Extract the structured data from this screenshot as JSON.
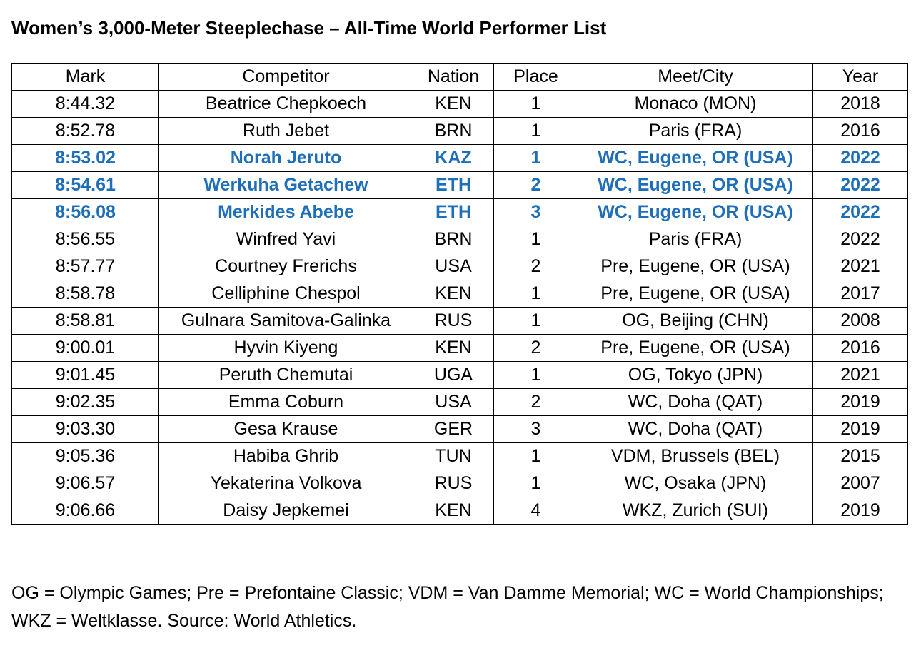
{
  "title": "Women’s 3,000-Meter Steeplechase – All-Time World Performer List",
  "colors": {
    "highlight": "#1f6fb8",
    "text": "#000000",
    "border": "#000000"
  },
  "table": {
    "headers": [
      "Mark",
      "Competitor",
      "Nation",
      "Place",
      "Meet/City",
      "Year"
    ],
    "rows": [
      {
        "mark": "8:44.32",
        "competitor": "Beatrice Chepkoech",
        "nation": "KEN",
        "place": "1",
        "meet": "Monaco (MON)",
        "year": "2018",
        "highlighted": false
      },
      {
        "mark": "8:52.78",
        "competitor": "Ruth Jebet",
        "nation": "BRN",
        "place": "1",
        "meet": "Paris (FRA)",
        "year": "2016",
        "highlighted": false
      },
      {
        "mark": "8:53.02",
        "competitor": "Norah Jeruto",
        "nation": "KAZ",
        "place": "1",
        "meet": "WC, Eugene, OR (USA)",
        "year": "2022",
        "highlighted": true
      },
      {
        "mark": "8:54.61",
        "competitor": "Werkuha Getachew",
        "nation": "ETH",
        "place": "2",
        "meet": "WC, Eugene, OR (USA)",
        "year": "2022",
        "highlighted": true
      },
      {
        "mark": "8:56.08",
        "competitor": "Merkides Abebe",
        "nation": "ETH",
        "place": "3",
        "meet": "WC, Eugene, OR (USA)",
        "year": "2022",
        "highlighted": true
      },
      {
        "mark": "8:56.55",
        "competitor": "Winfred Yavi",
        "nation": "BRN",
        "place": "1",
        "meet": "Paris (FRA)",
        "year": "2022",
        "highlighted": false
      },
      {
        "mark": "8:57.77",
        "competitor": "Courtney Frerichs",
        "nation": "USA",
        "place": "2",
        "meet": "Pre, Eugene, OR (USA)",
        "year": "2021",
        "highlighted": false
      },
      {
        "mark": "8:58.78",
        "competitor": "Celliphine Chespol",
        "nation": "KEN",
        "place": "1",
        "meet": "Pre, Eugene, OR (USA)",
        "year": "2017",
        "highlighted": false
      },
      {
        "mark": "8:58.81",
        "competitor": "Gulnara Samitova-Galinka",
        "nation": "RUS",
        "place": "1",
        "meet": "OG, Beijing (CHN)",
        "year": "2008",
        "highlighted": false
      },
      {
        "mark": "9:00.01",
        "competitor": "Hyvin Kiyeng",
        "nation": "KEN",
        "place": "2",
        "meet": "Pre, Eugene, OR (USA)",
        "year": "2016",
        "highlighted": false
      },
      {
        "mark": "9:01.45",
        "competitor": "Peruth Chemutai",
        "nation": "UGA",
        "place": "1",
        "meet": "OG, Tokyo (JPN)",
        "year": "2021",
        "highlighted": false
      },
      {
        "mark": "9:02.35",
        "competitor": "Emma Coburn",
        "nation": "USA",
        "place": "2",
        "meet": "WC, Doha (QAT)",
        "year": "2019",
        "highlighted": false
      },
      {
        "mark": "9:03.30",
        "competitor": "Gesa Krause",
        "nation": "GER",
        "place": "3",
        "meet": "WC, Doha (QAT)",
        "year": "2019",
        "highlighted": false
      },
      {
        "mark": "9:05.36",
        "competitor": "Habiba Ghrib",
        "nation": "TUN",
        "place": "1",
        "meet": "VDM, Brussels (BEL)",
        "year": "2015",
        "highlighted": false
      },
      {
        "mark": "9:06.57",
        "competitor": "Yekaterina Volkova",
        "nation": "RUS",
        "place": "1",
        "meet": "WC, Osaka (JPN)",
        "year": "2007",
        "highlighted": false
      },
      {
        "mark": "9:06.66",
        "competitor": "Daisy Jepkemei",
        "nation": "KEN",
        "place": "4",
        "meet": "WKZ, Zurich (SUI)",
        "year": "2019",
        "highlighted": false
      }
    ]
  },
  "footnote": "OG = Olympic Games; Pre = Prefontaine Classic; VDM = Van Damme Memorial; WC = World Championships; WKZ = Weltklasse. Source: World Athletics."
}
